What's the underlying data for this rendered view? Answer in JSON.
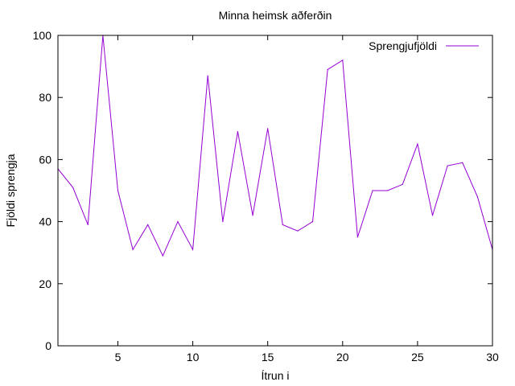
{
  "chart_data": {
    "type": "line",
    "title": "Minna heimsk aðferðin",
    "xlabel": "Ítrun i",
    "ylabel": "Fjöldi sprengja",
    "xlim": [
      1,
      30
    ],
    "ylim": [
      0,
      100
    ],
    "xticks": [
      5,
      10,
      15,
      20,
      25,
      30
    ],
    "yticks": [
      0,
      20,
      40,
      60,
      80,
      100
    ],
    "grid": false,
    "legend_position": "top-right",
    "series": [
      {
        "name": "Sprengjufjöldi",
        "color": "#9400d3",
        "x": [
          1,
          2,
          3,
          4,
          5,
          6,
          7,
          8,
          9,
          10,
          11,
          12,
          13,
          14,
          15,
          16,
          17,
          18,
          19,
          20,
          21,
          22,
          23,
          24,
          25,
          26,
          27,
          28,
          29,
          30
        ],
        "values": [
          57,
          51,
          39,
          100,
          50,
          31,
          39,
          29,
          40,
          31,
          87,
          40,
          69,
          42,
          70,
          39,
          37,
          40,
          89,
          92,
          35,
          50,
          50,
          52,
          65,
          42,
          58,
          59,
          48,
          31
        ]
      }
    ]
  }
}
